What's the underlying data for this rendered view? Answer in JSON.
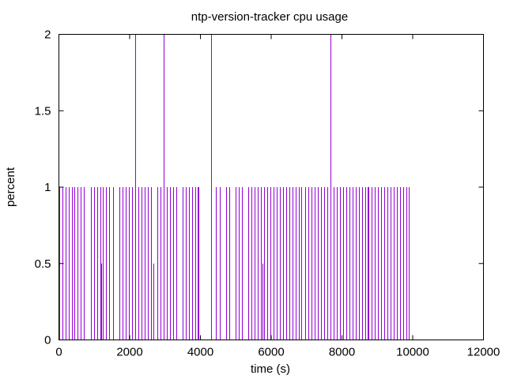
{
  "chart_data": {
    "type": "impulse",
    "title": "ntp-version-tracker cpu usage",
    "xlabel": "time (s)",
    "ylabel": "percent",
    "xlim": [
      0,
      12000
    ],
    "ylim": [
      0,
      2
    ],
    "x_ticks": [
      0,
      2000,
      4000,
      6000,
      8000,
      10000,
      12000
    ],
    "y_ticks": [
      0,
      0.5,
      1,
      1.5,
      2
    ],
    "x_tick_labels": [
      "0",
      "2000",
      "4000",
      "6000",
      "8000",
      "10000",
      "12000"
    ],
    "y_tick_labels": [
      "0",
      "0.5",
      "1",
      "1.5",
      "2"
    ],
    "grid": false,
    "legend": "none",
    "series": [
      {
        "color": "#9400d3",
        "points": [
          [
            20,
            1
          ],
          [
            90,
            1
          ],
          [
            180,
            1
          ],
          [
            270,
            1
          ],
          [
            360,
            1
          ],
          [
            440,
            1
          ],
          [
            530,
            1
          ],
          [
            620,
            1
          ],
          [
            710,
            1
          ],
          [
            900,
            1
          ],
          [
            990,
            1
          ],
          [
            1080,
            1
          ],
          [
            1170,
            1
          ],
          [
            1200,
            0.5
          ],
          [
            1250,
            1
          ],
          [
            1340,
            1
          ],
          [
            1430,
            1
          ],
          [
            1520,
            1
          ],
          [
            1700,
            1
          ],
          [
            1790,
            1
          ],
          [
            1880,
            1
          ],
          [
            1970,
            1
          ],
          [
            2060,
            1
          ],
          [
            2150,
            2
          ],
          [
            2240,
            1
          ],
          [
            2330,
            1
          ],
          [
            2420,
            1
          ],
          [
            2510,
            1
          ],
          [
            2600,
            1
          ],
          [
            2680,
            0.5
          ],
          [
            2780,
            1
          ],
          [
            2870,
            1
          ],
          [
            2970,
            2
          ],
          [
            3050,
            1
          ],
          [
            3140,
            1
          ],
          [
            3230,
            1
          ],
          [
            3320,
            1
          ],
          [
            3500,
            1
          ],
          [
            3590,
            1
          ],
          [
            3680,
            1
          ],
          [
            3770,
            1
          ],
          [
            3860,
            1
          ],
          [
            3930,
            1
          ],
          [
            3950,
            1
          ],
          [
            4310,
            2
          ],
          [
            4440,
            1
          ],
          [
            4540,
            1
          ],
          [
            4730,
            1
          ],
          [
            4820,
            1
          ],
          [
            5000,
            1
          ],
          [
            5090,
            1
          ],
          [
            5180,
            1
          ],
          [
            5350,
            1
          ],
          [
            5440,
            1
          ],
          [
            5530,
            1
          ],
          [
            5620,
            1
          ],
          [
            5710,
            1
          ],
          [
            5750,
            0.5
          ],
          [
            5800,
            1
          ],
          [
            5890,
            1
          ],
          [
            5980,
            1
          ],
          [
            6070,
            1
          ],
          [
            6150,
            1
          ],
          [
            6240,
            1
          ],
          [
            6330,
            1
          ],
          [
            6420,
            1
          ],
          [
            6510,
            1
          ],
          [
            6600,
            1
          ],
          [
            6690,
            1
          ],
          [
            6780,
            1
          ],
          [
            6860,
            1
          ],
          [
            6950,
            1
          ],
          [
            7040,
            1
          ],
          [
            7130,
            1
          ],
          [
            7220,
            1
          ],
          [
            7310,
            1
          ],
          [
            7400,
            1
          ],
          [
            7490,
            1
          ],
          [
            7580,
            1
          ],
          [
            7680,
            2
          ],
          [
            7760,
            1
          ],
          [
            7850,
            1
          ],
          [
            7940,
            1
          ],
          [
            8030,
            1
          ],
          [
            8120,
            1
          ],
          [
            8210,
            1
          ],
          [
            8300,
            1
          ],
          [
            8390,
            1
          ],
          [
            8480,
            1
          ],
          [
            8570,
            1
          ],
          [
            8660,
            1
          ],
          [
            8720,
            1
          ],
          [
            8750,
            1
          ],
          [
            8840,
            1
          ],
          [
            8930,
            1
          ],
          [
            9020,
            1
          ],
          [
            9110,
            1
          ],
          [
            9200,
            1
          ],
          [
            9290,
            1
          ],
          [
            9380,
            1
          ],
          [
            9470,
            1
          ],
          [
            9560,
            1
          ],
          [
            9650,
            1
          ],
          [
            9740,
            1
          ],
          [
            9830,
            1
          ],
          [
            9880,
            1
          ]
        ]
      }
    ]
  }
}
